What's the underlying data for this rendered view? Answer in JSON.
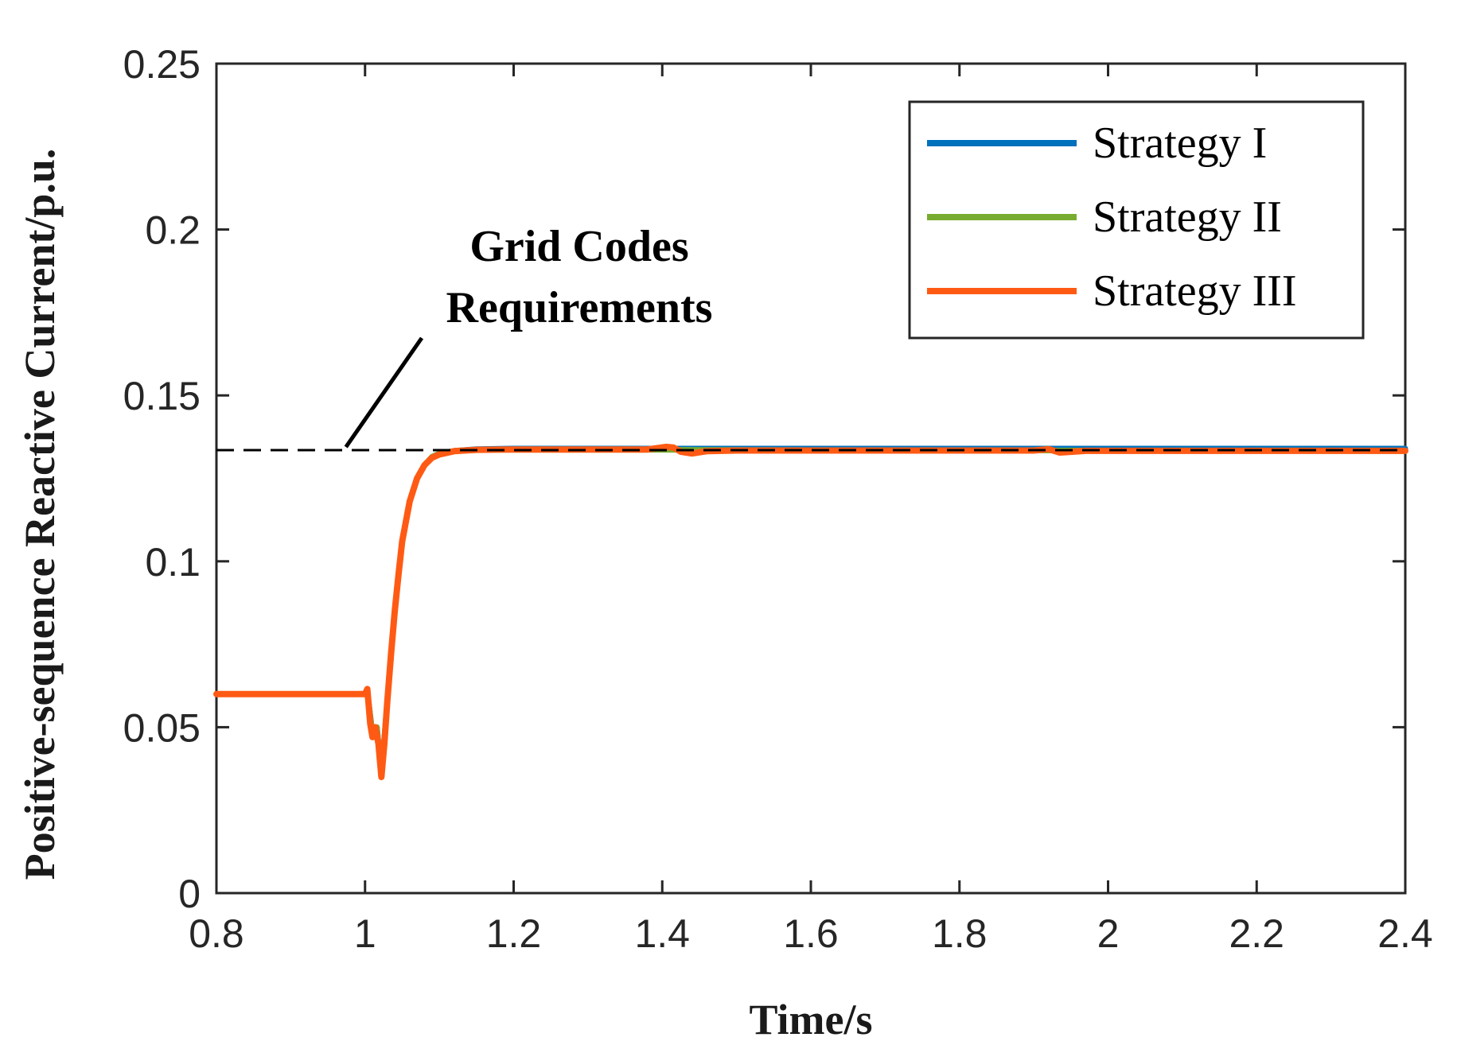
{
  "chart_data": {
    "type": "line",
    "title": "",
    "xlabel": "Time/s",
    "ylabel": "Positive-sequence Reactive Current/p.u.",
    "xlim": [
      0.8,
      2.4
    ],
    "ylim": [
      0,
      0.25
    ],
    "x_ticks": [
      0.8,
      1.0,
      1.2,
      1.4,
      1.6,
      1.8,
      2.0,
      2.2,
      2.4
    ],
    "x_tick_labels": [
      "0.8",
      "1",
      "1.2",
      "1.4",
      "1.6",
      "1.8",
      "2",
      "2.2",
      "2.4"
    ],
    "y_ticks": [
      0,
      0.05,
      0.1,
      0.15,
      0.2,
      0.25
    ],
    "y_tick_labels": [
      "0",
      "0.05",
      "0.1",
      "0.15",
      "0.2",
      "0.25"
    ],
    "grid": false,
    "legend_position": "top-right",
    "reference_line": {
      "y": 0.1335,
      "x_range": [
        0.8,
        2.4
      ],
      "style": "dashed",
      "color": "#000000"
    },
    "annotation": {
      "lines": [
        "Grid Codes",
        "Requirements"
      ],
      "arrow_to": {
        "x": 0.97,
        "y": 0.1335
      }
    },
    "series": [
      {
        "name": "Strategy I",
        "color": "#0072BD",
        "points": [
          [
            0.8,
            0.06
          ],
          [
            1.0,
            0.06
          ],
          [
            1.003,
            0.061
          ],
          [
            1.01,
            0.048
          ],
          [
            1.016,
            0.05
          ],
          [
            1.022,
            0.036
          ],
          [
            1.03,
            0.058
          ],
          [
            1.04,
            0.085
          ],
          [
            1.05,
            0.106
          ],
          [
            1.06,
            0.118
          ],
          [
            1.07,
            0.125
          ],
          [
            1.08,
            0.129
          ],
          [
            1.09,
            0.1315
          ],
          [
            1.1,
            0.1325
          ],
          [
            1.12,
            0.1333
          ],
          [
            1.15,
            0.1338
          ],
          [
            1.2,
            0.134
          ],
          [
            1.4,
            0.134
          ],
          [
            1.6,
            0.134
          ],
          [
            1.8,
            0.134
          ],
          [
            2.0,
            0.134
          ],
          [
            2.2,
            0.134
          ],
          [
            2.4,
            0.134
          ]
        ]
      },
      {
        "name": "Strategy II",
        "color": "#77AC30",
        "points": [
          [
            0.8,
            0.06
          ],
          [
            1.0,
            0.06
          ],
          [
            1.003,
            0.061
          ],
          [
            1.01,
            0.048
          ],
          [
            1.016,
            0.05
          ],
          [
            1.022,
            0.036
          ],
          [
            1.03,
            0.058
          ],
          [
            1.04,
            0.085
          ],
          [
            1.05,
            0.106
          ],
          [
            1.06,
            0.118
          ],
          [
            1.07,
            0.125
          ],
          [
            1.08,
            0.129
          ],
          [
            1.09,
            0.1315
          ],
          [
            1.1,
            0.1325
          ],
          [
            1.12,
            0.1333
          ],
          [
            1.15,
            0.1336
          ],
          [
            1.2,
            0.1336
          ],
          [
            1.4,
            0.1336
          ],
          [
            1.6,
            0.1335
          ],
          [
            1.8,
            0.1334
          ],
          [
            2.0,
            0.1334
          ],
          [
            2.2,
            0.1333
          ],
          [
            2.4,
            0.1332
          ]
        ]
      },
      {
        "name": "Strategy III",
        "color": "#FF5A14",
        "points": [
          [
            0.8,
            0.06
          ],
          [
            1.0,
            0.06
          ],
          [
            1.003,
            0.0615
          ],
          [
            1.007,
            0.051
          ],
          [
            1.01,
            0.047
          ],
          [
            1.014,
            0.05
          ],
          [
            1.018,
            0.045
          ],
          [
            1.022,
            0.035
          ],
          [
            1.026,
            0.045
          ],
          [
            1.03,
            0.058
          ],
          [
            1.035,
            0.072
          ],
          [
            1.04,
            0.085
          ],
          [
            1.045,
            0.096
          ],
          [
            1.05,
            0.106
          ],
          [
            1.06,
            0.118
          ],
          [
            1.07,
            0.125
          ],
          [
            1.08,
            0.129
          ],
          [
            1.09,
            0.1312
          ],
          [
            1.1,
            0.1322
          ],
          [
            1.12,
            0.1332
          ],
          [
            1.15,
            0.1336
          ],
          [
            1.2,
            0.1337
          ],
          [
            1.3,
            0.1337
          ],
          [
            1.38,
            0.1337
          ],
          [
            1.405,
            0.1345
          ],
          [
            1.415,
            0.1343
          ],
          [
            1.425,
            0.133
          ],
          [
            1.44,
            0.1325
          ],
          [
            1.46,
            0.1332
          ],
          [
            1.5,
            0.1334
          ],
          [
            1.6,
            0.1334
          ],
          [
            1.7,
            0.1334
          ],
          [
            1.8,
            0.1334
          ],
          [
            1.9,
            0.1334
          ],
          [
            1.92,
            0.1338
          ],
          [
            1.935,
            0.1328
          ],
          [
            1.95,
            0.133
          ],
          [
            1.97,
            0.1333
          ],
          [
            2.0,
            0.1333
          ],
          [
            2.2,
            0.1333
          ],
          [
            2.4,
            0.1333
          ]
        ]
      }
    ]
  }
}
